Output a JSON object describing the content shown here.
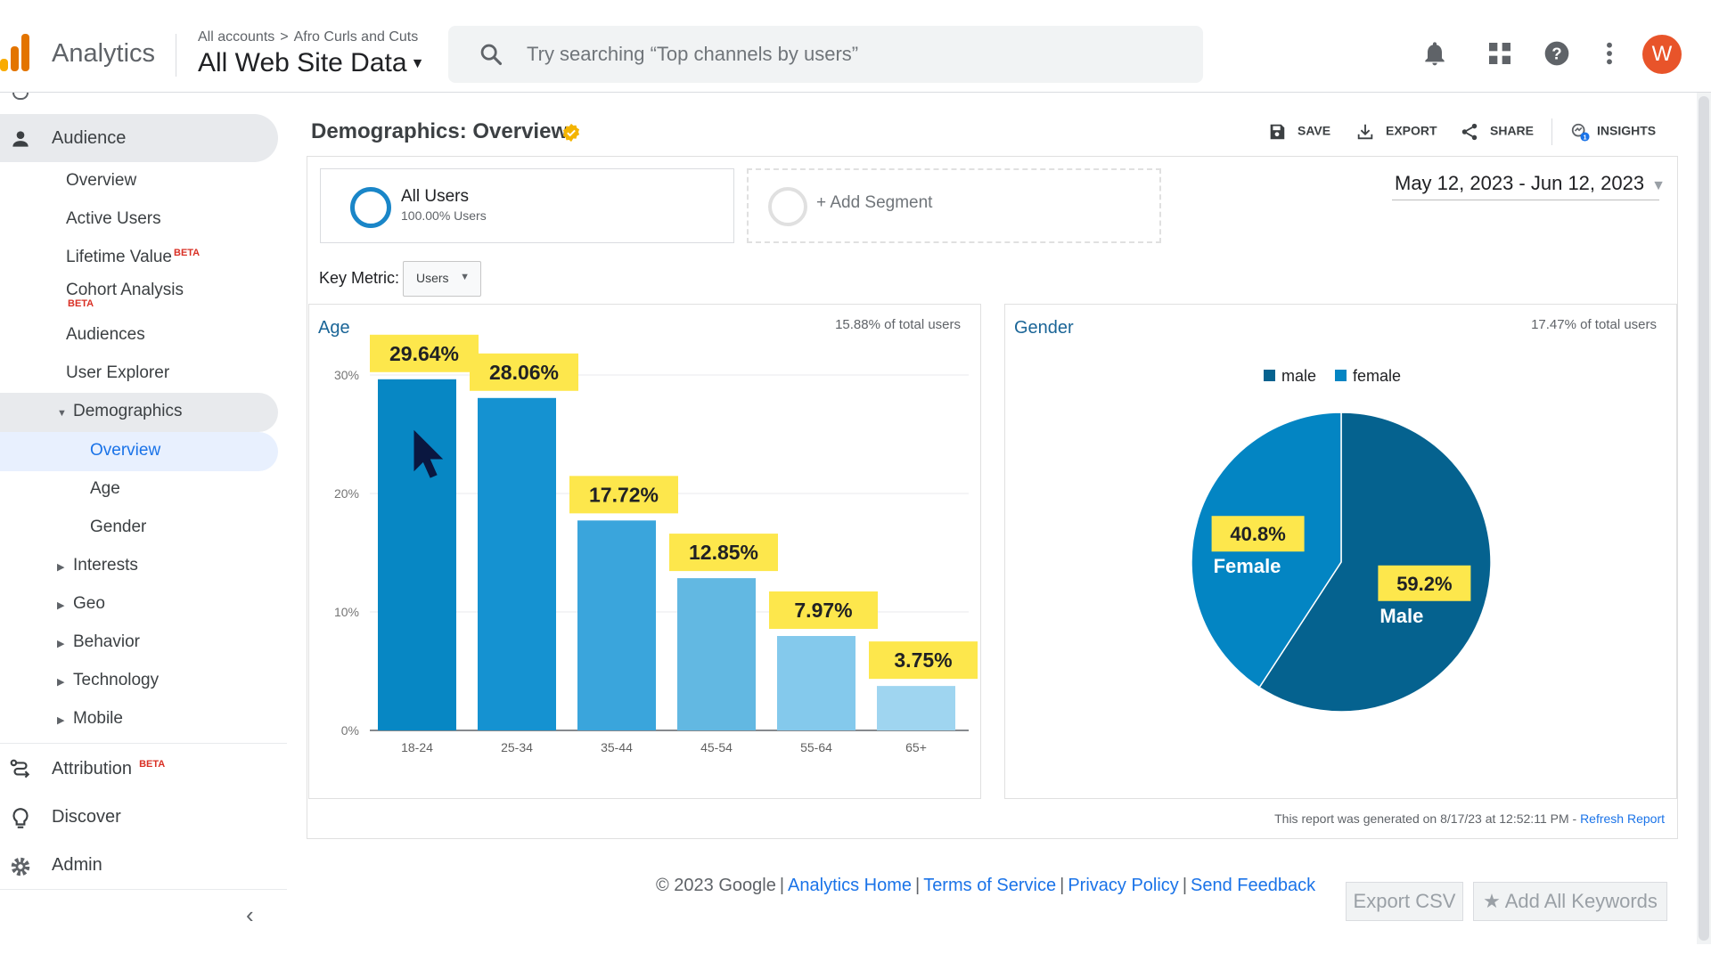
{
  "header": {
    "app_name": "Analytics",
    "breadcrumb_root": "All accounts",
    "breadcrumb_account": "Afro Curls and Cuts",
    "property": "All Web Site Data",
    "search_placeholder": "Try searching “Top channels by users”",
    "avatar_initial": "W",
    "icons": [
      "notifications-bell-icon",
      "apps-grid-icon",
      "help-icon",
      "more-vert-icon"
    ]
  },
  "sidebar": {
    "section": "Audience",
    "items": [
      "Overview",
      "Active Users",
      "Lifetime Value",
      "Cohort Analysis",
      "Audiences",
      "User Explorer"
    ],
    "beta": "BETA",
    "demographics": "Demographics",
    "demographics_children": [
      "Overview",
      "Age",
      "Gender"
    ],
    "collapsed": [
      "Interests",
      "Geo",
      "Behavior",
      "Technology",
      "Mobile"
    ],
    "attribution": "Attribution",
    "discover": "Discover",
    "admin": "Admin"
  },
  "main": {
    "title": "Demographics: Overview",
    "toolbar": {
      "save": "SAVE",
      "export": "EXPORT",
      "share": "SHARE",
      "insights": "INSIGHTS",
      "insights_badge": "1"
    },
    "segment": {
      "name": "All Users",
      "share": "100.00% Users"
    },
    "add_segment": "+ Add Segment",
    "date_range": "May 12, 2023 - Jun 12, 2023",
    "key_metric_label": "Key Metric:",
    "key_metric_value": "Users",
    "report_generated": "This report was generated on 8/17/23 at 12:52:11 PM - ",
    "refresh": "Refresh Report"
  },
  "charts": {
    "age_title": "Age",
    "age_note": "15.88% of total users",
    "gender_title": "Gender",
    "gender_note": "17.47% of total users"
  },
  "chart_data": [
    {
      "type": "bar",
      "title": "Age",
      "categories": [
        "18-24",
        "25-34",
        "35-44",
        "45-54",
        "55-64",
        "65+"
      ],
      "values": [
        29.64,
        28.06,
        17.72,
        12.85,
        7.97,
        3.75
      ],
      "data_labels": [
        "29.64%",
        "28.06%",
        "17.72%",
        "12.85%",
        "7.97%",
        "3.75%"
      ],
      "yticks": [
        "0%",
        "10%",
        "20%",
        "30%"
      ],
      "ylim": [
        0,
        30
      ],
      "grid": true,
      "colors": [
        "#0787c4",
        "#1592d1",
        "#3aa5dc",
        "#62b8e2",
        "#84c9ec",
        "#9fd5f0"
      ],
      "label_bg": "#fde74c"
    },
    {
      "type": "pie",
      "title": "Gender",
      "legend_position": "top",
      "series": [
        {
          "name": "male",
          "value": 59.2,
          "label": "59.2%",
          "caption": "Male",
          "color": "#05628f"
        },
        {
          "name": "female",
          "value": 40.8,
          "label": "40.8%",
          "caption": "Female",
          "color": "#0385c3"
        }
      ],
      "label_bg": "#fde74c"
    }
  ],
  "footer": {
    "copyright": "© 2023 Google",
    "links": [
      "Analytics Home",
      "Terms of Service",
      "Privacy Policy",
      "Send Feedback"
    ],
    "export_csv": "Export CSV",
    "add_keywords": "Add All Keywords"
  }
}
